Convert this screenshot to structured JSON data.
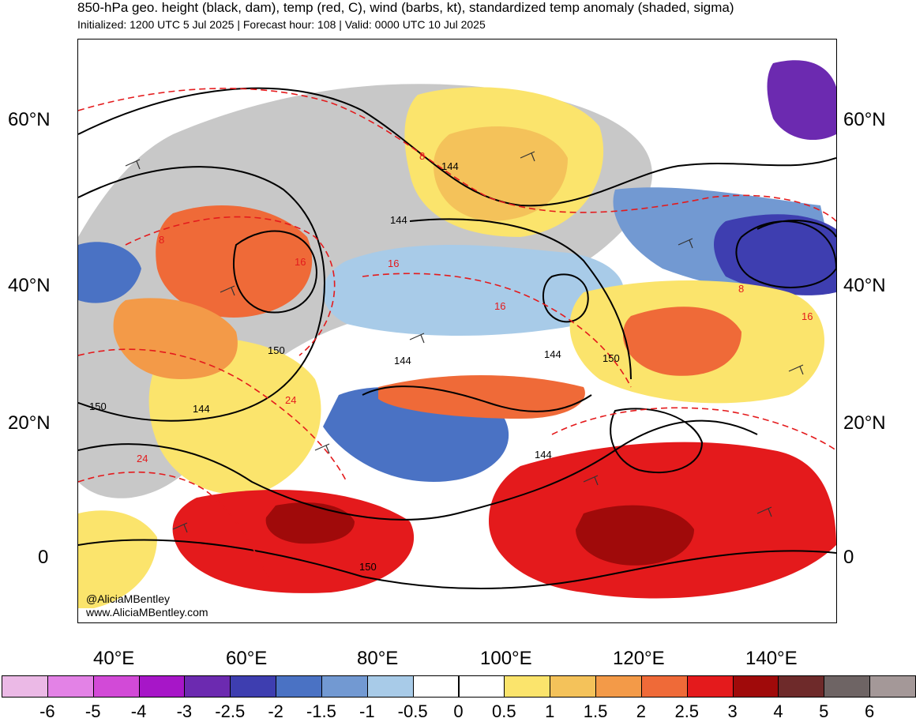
{
  "header": {
    "title": "850-hPa geo. height (black, dam), temp (red, C), wind (barbs, kt), standardized temp anomaly (shaded, sigma)",
    "subtitle": "Initialized: 1200 UTC 5 Jul 2025 | Forecast hour: 108 | Valid: 0000 UTC 10 Jul 2025"
  },
  "axes": {
    "lat_labels": [
      "60°N",
      "40°N",
      "20°N",
      "0"
    ],
    "lon_labels": [
      "40°E",
      "60°E",
      "80°E",
      "100°E",
      "120°E",
      "140°E"
    ]
  },
  "contour_labels": {
    "height": [
      "144",
      "144",
      "150",
      "144",
      "144",
      "150",
      "150",
      "144",
      "144",
      "150"
    ],
    "temp": [
      "8",
      "8",
      "16",
      "16",
      "16",
      "24",
      "24",
      "8",
      "16"
    ]
  },
  "credits": {
    "handle": "@AliciaMBentley",
    "website": "www.AliciaMBentley.com"
  },
  "colorbar": {
    "labels": [
      "-6",
      "-5",
      "-4",
      "-3",
      "-2.5",
      "-2",
      "-1.5",
      "-1",
      "-0.5",
      "0",
      "0.5",
      "1",
      "1.5",
      "2",
      "2.5",
      "3",
      "4",
      "5",
      "6"
    ],
    "colors": [
      "#ebb9e6",
      "#e382e6",
      "#d24ad7",
      "#a716c8",
      "#6c2ab0",
      "#3e3eb0",
      "#4a72c4",
      "#7299d2",
      "#a8cbe8",
      "#ffffff",
      "#ffffff",
      "#fbe46c",
      "#f4c25a",
      "#f39a48",
      "#ef6a38",
      "#e41a1c",
      "#a00a0a",
      "#6e2a2a",
      "#6e6464",
      "#a49898"
    ]
  },
  "palette": {
    "land_neutral": "#c8c8c8",
    "height_contour": "#000000",
    "temp_contour": "#e41a1c",
    "coast": "#555555"
  }
}
